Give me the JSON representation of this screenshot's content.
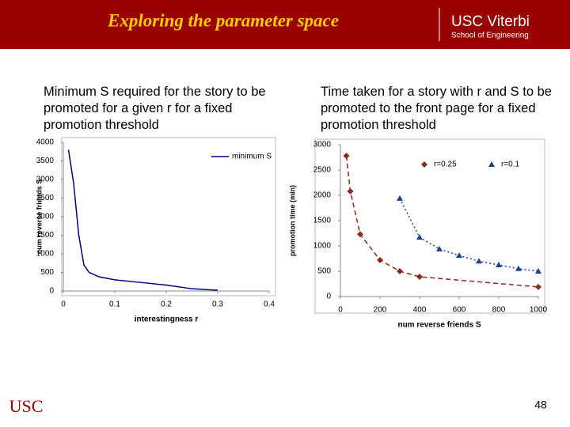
{
  "slide": {
    "title": "Exploring the parameter space",
    "logo_main": "USC Viterbi",
    "logo_sub": "School of Engineering",
    "footer_logo": "USC",
    "page_number": 48
  },
  "chart_data": [
    {
      "type": "line",
      "title": "Minimum S required for the story to be promoted for a given r for a fixed promotion threshold",
      "x_label": "interestingness r",
      "y_label": "num reverse friends S",
      "xlim": [
        0,
        0.4
      ],
      "xticks": [
        0,
        0.1,
        0.2,
        0.3,
        0.4
      ],
      "ylim": [
        0,
        4000
      ],
      "yticks": [
        0,
        500,
        1000,
        1500,
        2000,
        2500,
        3000,
        3500,
        4000
      ],
      "legend": "upper right",
      "series": [
        {
          "name": "minimum S",
          "color": "#000080",
          "line_style": "solid",
          "marker": "none",
          "x": [
            0.01,
            0.02,
            0.03,
            0.04,
            0.05,
            0.07,
            0.1,
            0.15,
            0.2,
            0.25,
            0.3
          ],
          "values": [
            3800,
            2900,
            1500,
            700,
            500,
            380,
            300,
            230,
            160,
            60,
            20
          ]
        }
      ]
    },
    {
      "type": "line",
      "title": "Time taken for a story with r and S to be promoted to the front page for a fixed promotion threshold",
      "x_label": "num reverse friends S",
      "y_label": "promotion time (min)",
      "xlim": [
        0,
        1000
      ],
      "xticks": [
        0,
        200,
        400,
        600,
        800,
        1000
      ],
      "ylim": [
        0,
        3000
      ],
      "yticks": [
        0,
        500,
        1000,
        1500,
        2000,
        2500,
        3000
      ],
      "legend": "upper right",
      "series": [
        {
          "name": "r=0.25",
          "color": "#8b2a1a",
          "line_style": "dashed",
          "marker": "diamond",
          "x": [
            30,
            50,
            100,
            200,
            300,
            400,
            1000
          ],
          "values": [
            2780,
            2080,
            1230,
            720,
            500,
            390,
            190
          ]
        },
        {
          "name": "r=0.1",
          "color": "#1f3f8f",
          "line_style": "dotted",
          "marker": "triangle",
          "x": [
            300,
            400,
            500,
            600,
            700,
            800,
            900,
            1000
          ],
          "values": [
            1940,
            1170,
            940,
            810,
            700,
            625,
            550,
            500
          ]
        }
      ]
    }
  ]
}
